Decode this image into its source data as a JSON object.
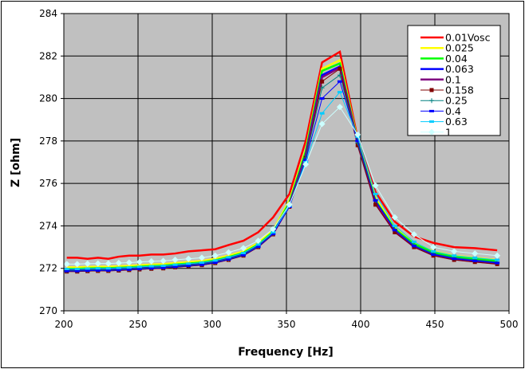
{
  "chart_data": {
    "type": "line",
    "title": "",
    "xlabel": "Frequency [Hz]",
    "ylabel": "Z [ohm]",
    "xlim": [
      200,
      500
    ],
    "ylim": [
      270,
      284
    ],
    "xticks": [
      "200",
      "250",
      "300",
      "350",
      "400",
      "450",
      "500"
    ],
    "yticks": [
      "270",
      "272",
      "274",
      "276",
      "278",
      "280",
      "282",
      "284"
    ],
    "grid": true,
    "legend_position": "top-right",
    "plot_background": "#c0c0c0",
    "x": [
      202,
      209,
      216,
      223,
      230,
      237,
      244,
      251,
      259,
      267,
      275,
      284,
      293,
      302,
      311,
      321,
      331,
      341,
      352,
      363,
      374,
      386,
      398,
      410,
      423,
      436,
      449,
      463,
      477,
      492
    ],
    "series": [
      {
        "name": "0.01Vosc",
        "color": "#ff0000",
        "marker": "none",
        "values": [
          272.5,
          272.5,
          272.45,
          272.5,
          272.45,
          272.55,
          272.6,
          272.6,
          272.65,
          272.65,
          272.7,
          272.8,
          272.85,
          272.9,
          273.1,
          273.3,
          273.7,
          274.4,
          275.5,
          278.0,
          281.7,
          282.2,
          278.1,
          275.6,
          274.2,
          273.5,
          273.2,
          273.0,
          272.95,
          272.85
        ]
      },
      {
        "name": "0.025",
        "color": "#ffff00",
        "marker": "none",
        "values": [
          272.05,
          272.05,
          272.07,
          272.08,
          272.08,
          272.1,
          272.12,
          272.15,
          272.18,
          272.2,
          272.25,
          272.3,
          272.35,
          272.45,
          272.6,
          272.8,
          273.2,
          273.8,
          275.2,
          277.6,
          281.4,
          281.8,
          278.0,
          275.3,
          273.95,
          273.2,
          272.8,
          272.6,
          272.5,
          272.4
        ]
      },
      {
        "name": "0.04",
        "color": "#00ff00",
        "marker": "none",
        "values": [
          271.98,
          271.98,
          272.0,
          272.01,
          272.01,
          272.03,
          272.05,
          272.08,
          272.11,
          272.13,
          272.18,
          272.23,
          272.28,
          272.38,
          272.53,
          272.73,
          273.12,
          273.72,
          275.1,
          277.5,
          281.3,
          281.65,
          277.95,
          275.2,
          273.85,
          273.15,
          272.75,
          272.55,
          272.45,
          272.35
        ]
      },
      {
        "name": "0.063",
        "color": "#0000ff",
        "marker": "none",
        "values": [
          271.9,
          271.9,
          271.92,
          271.93,
          271.93,
          271.95,
          271.97,
          272.0,
          272.03,
          272.05,
          272.1,
          272.15,
          272.2,
          272.3,
          272.45,
          272.65,
          273.05,
          273.65,
          275.0,
          277.35,
          281.1,
          281.5,
          277.9,
          275.1,
          273.75,
          273.05,
          272.65,
          272.45,
          272.35,
          272.25
        ]
      },
      {
        "name": "0.1",
        "color": "#800080",
        "marker": "none",
        "values": [
          271.88,
          271.88,
          271.9,
          271.91,
          271.91,
          271.93,
          271.95,
          271.98,
          272.01,
          272.03,
          272.08,
          272.13,
          272.18,
          272.28,
          272.43,
          272.63,
          273.03,
          273.63,
          274.95,
          277.3,
          281.0,
          281.45,
          277.85,
          275.05,
          273.72,
          273.02,
          272.62,
          272.42,
          272.32,
          272.22
        ]
      },
      {
        "name": "0.158",
        "color": "#800000",
        "marker": "square",
        "values": [
          271.85,
          271.85,
          271.87,
          271.88,
          271.88,
          271.9,
          271.92,
          271.95,
          271.98,
          272.0,
          272.05,
          272.1,
          272.15,
          272.25,
          272.4,
          272.6,
          273.0,
          273.6,
          274.9,
          277.2,
          280.8,
          281.4,
          277.8,
          275.0,
          273.7,
          273.0,
          272.6,
          272.4,
          272.3,
          272.2
        ]
      },
      {
        "name": "0.25",
        "color": "#008080",
        "marker": "plus",
        "values": [
          271.9,
          271.9,
          271.92,
          271.93,
          271.93,
          271.95,
          271.97,
          272.0,
          272.03,
          272.05,
          272.1,
          272.15,
          272.2,
          272.3,
          272.45,
          272.65,
          273.05,
          273.65,
          274.95,
          277.2,
          280.5,
          281.1,
          277.9,
          275.2,
          273.85,
          273.1,
          272.7,
          272.5,
          272.4,
          272.3
        ]
      },
      {
        "name": "0.4",
        "color": "#0000ff",
        "marker": "dash",
        "values": [
          271.87,
          271.87,
          271.89,
          271.9,
          271.9,
          271.92,
          271.94,
          271.97,
          272.0,
          272.02,
          272.07,
          272.12,
          272.17,
          272.27,
          272.42,
          272.62,
          273.02,
          273.62,
          274.9,
          277.1,
          280.0,
          280.8,
          278.0,
          275.2,
          273.8,
          273.05,
          272.65,
          272.45,
          272.35,
          272.25
        ]
      },
      {
        "name": "0.63",
        "color": "#00ccff",
        "marker": "dash",
        "values": [
          271.97,
          271.97,
          271.99,
          272.0,
          272.0,
          272.02,
          272.04,
          272.07,
          272.1,
          272.12,
          272.17,
          272.22,
          272.27,
          272.37,
          272.52,
          272.72,
          273.12,
          273.7,
          274.95,
          277.0,
          279.3,
          280.3,
          278.2,
          275.5,
          274.0,
          273.25,
          272.8,
          272.6,
          272.5,
          272.4
        ]
      },
      {
        "name": "1",
        "color": "#ccffff",
        "marker": "diamond",
        "values": [
          272.2,
          272.2,
          272.22,
          272.23,
          272.23,
          272.25,
          272.27,
          272.3,
          272.33,
          272.35,
          272.4,
          272.45,
          272.5,
          272.6,
          272.75,
          272.95,
          273.3,
          273.85,
          275.0,
          276.9,
          278.8,
          279.6,
          278.3,
          275.9,
          274.4,
          273.6,
          273.0,
          272.8,
          272.7,
          272.6
        ]
      }
    ]
  }
}
